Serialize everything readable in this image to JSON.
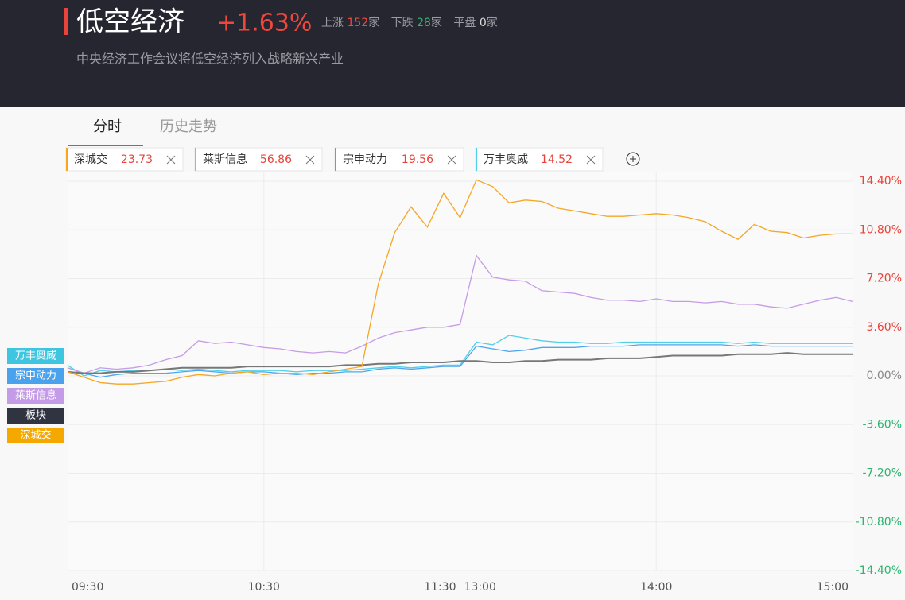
{
  "header": {
    "title": "低空经济",
    "change": "+1.63%",
    "stats": [
      {
        "label": "上涨",
        "count": 152,
        "unit": "家"
      },
      {
        "label": "下跌",
        "count": 28,
        "unit": "家"
      },
      {
        "label": "平盘",
        "count": 0,
        "unit": "家"
      }
    ],
    "subtitle": "中央经济工作会议将低空经济列入战略新兴产业"
  },
  "tabs": [
    "分时",
    "历史走势"
  ],
  "compare": [
    {
      "name": "深城交",
      "price": "23.73",
      "color": "#f5a623"
    },
    {
      "name": "莱斯信息",
      "price": "56.86",
      "color": "#c69be8"
    },
    {
      "name": "宗申动力",
      "price": "19.56",
      "color": "#4da6ee"
    },
    {
      "name": "万丰奥威",
      "price": "14.52",
      "color": "#4fd0e8"
    }
  ],
  "chart_data": {
    "type": "line",
    "x": [
      "09:30",
      "09:35",
      "09:40",
      "09:45",
      "09:50",
      "09:55",
      "10:00",
      "10:05",
      "10:10",
      "10:15",
      "10:20",
      "10:25",
      "10:30",
      "10:35",
      "10:40",
      "10:45",
      "10:50",
      "10:55",
      "11:00",
      "11:05",
      "11:10",
      "11:15",
      "11:20",
      "11:25",
      "11:30",
      "13:05",
      "13:10",
      "13:15",
      "13:20",
      "13:25",
      "13:30",
      "13:35",
      "13:40",
      "13:45",
      "13:50",
      "13:55",
      "14:00",
      "14:05",
      "14:10",
      "14:15",
      "14:20",
      "14:25",
      "14:30",
      "14:35",
      "14:40",
      "14:45",
      "14:50",
      "14:55",
      "15:00"
    ],
    "xticks": [
      "09:30",
      "10:30",
      "11:30",
      "13:00",
      "14:00",
      "15:00"
    ],
    "ylim": [
      -14.4,
      14.4
    ],
    "yticks": [
      {
        "value": 14.4,
        "label": "14.40%"
      },
      {
        "value": 10.8,
        "label": "10.80%"
      },
      {
        "value": 7.2,
        "label": "7.20%"
      },
      {
        "value": 3.6,
        "label": "3.60%"
      },
      {
        "value": 0,
        "label": "0.00%"
      },
      {
        "value": -3.6,
        "label": "-3.60%"
      },
      {
        "value": -7.2,
        "label": "-7.20%"
      },
      {
        "value": -10.8,
        "label": "-10.80%"
      },
      {
        "value": -14.4,
        "label": "-14.40%"
      }
    ],
    "grid": true,
    "series": [
      {
        "name": "万丰奥威",
        "color": "#4fd0e8",
        "legend_color": "#3ec6e0",
        "values": [
          0.8,
          0.0,
          0.4,
          0.3,
          0.4,
          0.4,
          0.5,
          0.4,
          0.5,
          0.4,
          0.3,
          0.4,
          0.4,
          0.4,
          0.3,
          0.4,
          0.4,
          0.4,
          0.5,
          0.6,
          0.7,
          0.6,
          0.7,
          0.8,
          0.8,
          2.5,
          2.3,
          3.0,
          2.8,
          2.6,
          2.5,
          2.5,
          2.4,
          2.4,
          2.5,
          2.5,
          2.5,
          2.5,
          2.5,
          2.5,
          2.5,
          2.4,
          2.5,
          2.4,
          2.4,
          2.4,
          2.4,
          2.4,
          2.4
        ]
      },
      {
        "name": "宗申动力",
        "color": "#4da6ee",
        "legend_color": "#4aa2ec",
        "values": [
          0.6,
          0.2,
          -0.1,
          0.1,
          0.2,
          0.2,
          0.2,
          0.3,
          0.4,
          0.3,
          0.2,
          0.3,
          0.3,
          0.2,
          0.1,
          0.2,
          0.2,
          0.3,
          0.3,
          0.5,
          0.6,
          0.5,
          0.6,
          0.7,
          0.7,
          2.2,
          2.0,
          1.8,
          1.9,
          2.1,
          2.1,
          2.1,
          2.2,
          2.2,
          2.2,
          2.3,
          2.3,
          2.3,
          2.3,
          2.3,
          2.3,
          2.2,
          2.3,
          2.2,
          2.2,
          2.2,
          2.2,
          2.2,
          2.2
        ]
      },
      {
        "name": "莱斯信息",
        "color": "#c69be8",
        "legend_color": "#c39be6",
        "values": [
          0.6,
          0.2,
          0.6,
          0.5,
          0.6,
          0.8,
          1.2,
          1.5,
          2.6,
          2.4,
          2.5,
          2.3,
          2.1,
          2.0,
          1.8,
          1.7,
          1.8,
          1.7,
          2.2,
          2.8,
          3.2,
          3.4,
          3.6,
          3.6,
          3.8,
          8.9,
          7.3,
          7.1,
          7.0,
          6.3,
          6.2,
          6.1,
          5.8,
          5.6,
          5.6,
          5.5,
          5.7,
          5.5,
          5.5,
          5.4,
          5.5,
          5.3,
          5.3,
          5.1,
          5.0,
          5.3,
          5.6,
          5.8,
          5.5
        ]
      },
      {
        "name": "板块",
        "color": "#777777",
        "legend_color": "#2f3440",
        "values": [
          0.3,
          0.2,
          0.2,
          0.3,
          0.3,
          0.4,
          0.5,
          0.6,
          0.6,
          0.6,
          0.6,
          0.7,
          0.7,
          0.7,
          0.7,
          0.7,
          0.7,
          0.8,
          0.8,
          0.9,
          0.9,
          1.0,
          1.0,
          1.0,
          1.1,
          1.1,
          1.0,
          1.0,
          1.1,
          1.1,
          1.2,
          1.2,
          1.2,
          1.3,
          1.3,
          1.3,
          1.4,
          1.5,
          1.5,
          1.5,
          1.5,
          1.6,
          1.6,
          1.6,
          1.7,
          1.6,
          1.6,
          1.6,
          1.6
        ]
      },
      {
        "name": "深城交",
        "color": "#f5a623",
        "legend_color": "#f5a800",
        "values": [
          0.3,
          -0.1,
          -0.5,
          -0.6,
          -0.6,
          -0.5,
          -0.4,
          -0.1,
          0.1,
          0.0,
          0.2,
          0.3,
          0.1,
          0.2,
          0.2,
          0.1,
          0.3,
          0.5,
          0.7,
          6.8,
          10.6,
          12.5,
          11.0,
          13.5,
          11.7,
          14.5,
          14.0,
          12.8,
          13.0,
          12.9,
          12.4,
          12.2,
          12.0,
          11.8,
          11.8,
          11.9,
          12.0,
          11.9,
          11.7,
          11.4,
          10.7,
          10.1,
          11.2,
          10.7,
          10.6,
          10.2,
          10.4,
          10.5,
          10.5
        ]
      }
    ]
  }
}
